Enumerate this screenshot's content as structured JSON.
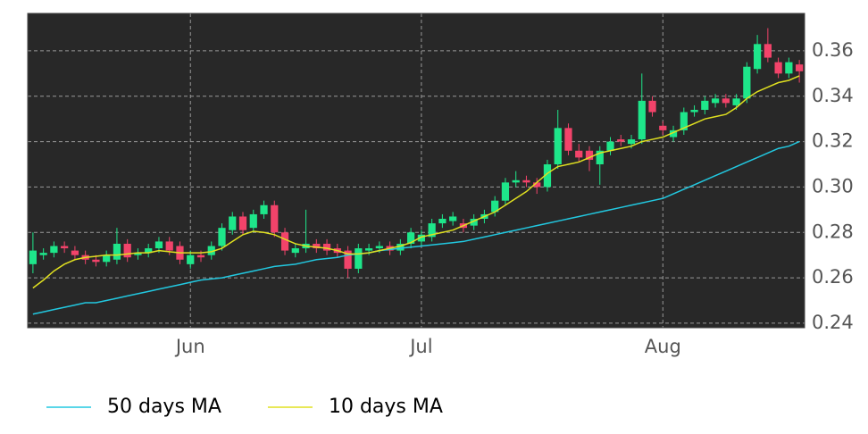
{
  "chart_data": {
    "type": "candlestick",
    "categories": [
      null,
      null,
      null,
      null,
      null,
      null,
      null,
      null,
      null,
      null,
      null,
      null,
      null,
      null,
      null,
      "Jun",
      null,
      null,
      null,
      null,
      null,
      null,
      null,
      null,
      null,
      null,
      null,
      null,
      null,
      null,
      null,
      null,
      null,
      null,
      null,
      null,
      null,
      "Jul",
      null,
      null,
      null,
      null,
      null,
      null,
      null,
      null,
      null,
      null,
      null,
      null,
      null,
      null,
      null,
      null,
      null,
      null,
      null,
      null,
      null,
      null,
      "Aug",
      null,
      null,
      null,
      null,
      null,
      null,
      null,
      null,
      null,
      null,
      null,
      null,
      null
    ],
    "open": [
      0.266,
      0.27,
      0.271,
      0.274,
      0.272,
      0.27,
      0.268,
      0.267,
      0.268,
      0.275,
      0.27,
      0.271,
      0.273,
      0.276,
      0.274,
      0.266,
      0.27,
      0.27,
      0.274,
      0.281,
      0.287,
      0.282,
      0.288,
      0.292,
      0.28,
      0.271,
      0.273,
      0.275,
      0.275,
      0.273,
      0.272,
      0.264,
      0.272,
      0.273,
      0.274,
      0.272,
      0.275,
      0.276,
      0.278,
      0.284,
      0.285,
      0.284,
      0.283,
      0.286,
      0.289,
      0.294,
      0.302,
      0.303,
      0.302,
      0.3,
      0.31,
      0.326,
      0.316,
      0.316,
      0.31,
      0.316,
      0.321,
      0.319,
      0.321,
      0.338,
      0.327,
      0.322,
      0.325,
      0.333,
      0.334,
      0.337,
      0.339,
      0.336,
      0.339,
      0.352,
      0.363,
      0.355,
      0.35,
      0.354
    ],
    "close": [
      0.272,
      0.271,
      0.274,
      0.273,
      0.27,
      0.268,
      0.267,
      0.27,
      0.275,
      0.269,
      0.271,
      0.273,
      0.276,
      0.272,
      0.268,
      0.27,
      0.269,
      0.274,
      0.282,
      0.287,
      0.281,
      0.288,
      0.292,
      0.28,
      0.272,
      0.273,
      0.275,
      0.273,
      0.272,
      0.271,
      0.264,
      0.273,
      0.273,
      0.274,
      0.272,
      0.275,
      0.28,
      0.279,
      0.284,
      0.286,
      0.287,
      0.282,
      0.286,
      0.288,
      0.294,
      0.302,
      0.303,
      0.302,
      0.3,
      0.31,
      0.326,
      0.316,
      0.313,
      0.312,
      0.316,
      0.32,
      0.32,
      0.321,
      0.338,
      0.333,
      0.325,
      0.325,
      0.333,
      0.334,
      0.338,
      0.339,
      0.337,
      0.339,
      0.353,
      0.363,
      0.357,
      0.35,
      0.355,
      0.351
    ],
    "high": [
      0.28,
      0.273,
      0.276,
      0.276,
      0.274,
      0.272,
      0.27,
      0.272,
      0.282,
      0.277,
      0.273,
      0.275,
      0.278,
      0.278,
      0.276,
      0.272,
      0.272,
      0.276,
      0.284,
      0.289,
      0.289,
      0.29,
      0.294,
      0.294,
      0.282,
      0.275,
      0.29,
      0.277,
      0.277,
      0.275,
      0.274,
      0.275,
      0.275,
      0.276,
      0.276,
      0.277,
      0.282,
      0.281,
      0.286,
      0.288,
      0.289,
      0.286,
      0.288,
      0.29,
      0.296,
      0.304,
      0.307,
      0.305,
      0.304,
      0.312,
      0.334,
      0.328,
      0.319,
      0.318,
      0.318,
      0.322,
      0.323,
      0.323,
      0.35,
      0.34,
      0.329,
      0.327,
      0.335,
      0.336,
      0.34,
      0.341,
      0.341,
      0.341,
      0.355,
      0.367,
      0.37,
      0.357,
      0.357,
      0.356
    ],
    "low": [
      0.262,
      0.268,
      0.269,
      0.271,
      0.268,
      0.266,
      0.265,
      0.265,
      0.266,
      0.267,
      0.268,
      0.269,
      0.271,
      0.27,
      0.266,
      0.264,
      0.267,
      0.268,
      0.272,
      0.279,
      0.279,
      0.28,
      0.286,
      0.278,
      0.27,
      0.269,
      0.271,
      0.271,
      0.27,
      0.269,
      0.26,
      0.262,
      0.27,
      0.271,
      0.27,
      0.27,
      0.273,
      0.274,
      0.276,
      0.282,
      0.283,
      0.28,
      0.281,
      0.284,
      0.287,
      0.292,
      0.3,
      0.3,
      0.297,
      0.298,
      0.308,
      0.314,
      0.311,
      0.307,
      0.301,
      0.314,
      0.318,
      0.317,
      0.319,
      0.331,
      0.323,
      0.32,
      0.323,
      0.331,
      0.332,
      0.335,
      0.335,
      0.334,
      0.337,
      0.35,
      0.355,
      0.348,
      0.348,
      0.346
    ],
    "up_color": "#1ee68a",
    "down_color": "#f2436a",
    "lines": [
      {
        "name": "50 days MA",
        "color": "#22c8e0",
        "values": [
          0.244,
          0.245,
          0.246,
          0.247,
          0.248,
          0.249,
          0.249,
          0.25,
          0.251,
          0.252,
          0.253,
          0.254,
          0.255,
          0.256,
          0.257,
          0.258,
          0.259,
          0.2595,
          0.26,
          0.261,
          0.262,
          0.263,
          0.264,
          0.265,
          0.2655,
          0.266,
          0.267,
          0.268,
          0.2685,
          0.269,
          0.27,
          0.2705,
          0.271,
          0.272,
          0.2725,
          0.273,
          0.2735,
          0.274,
          0.2745,
          0.275,
          0.2755,
          0.276,
          0.277,
          0.278,
          0.279,
          0.28,
          0.281,
          0.282,
          0.283,
          0.284,
          0.285,
          0.286,
          0.287,
          0.288,
          0.289,
          0.29,
          0.291,
          0.292,
          0.293,
          0.294,
          0.295,
          0.297,
          0.299,
          0.301,
          0.303,
          0.305,
          0.307,
          0.309,
          0.311,
          0.313,
          0.315,
          0.317,
          0.318,
          0.32
        ]
      },
      {
        "name": "10 days MA",
        "color": "#e0e020",
        "values": [
          0.2555,
          0.259,
          0.263,
          0.266,
          0.268,
          0.269,
          0.2695,
          0.27,
          0.27,
          0.2705,
          0.271,
          0.271,
          0.272,
          0.2715,
          0.271,
          0.271,
          0.271,
          0.2715,
          0.273,
          0.276,
          0.279,
          0.2805,
          0.28,
          0.279,
          0.277,
          0.275,
          0.274,
          0.2735,
          0.273,
          0.272,
          0.2705,
          0.2705,
          0.271,
          0.272,
          0.273,
          0.274,
          0.2755,
          0.278,
          0.279,
          0.28,
          0.281,
          0.283,
          0.285,
          0.287,
          0.289,
          0.292,
          0.295,
          0.298,
          0.302,
          0.306,
          0.309,
          0.31,
          0.311,
          0.313,
          0.315,
          0.316,
          0.317,
          0.318,
          0.32,
          0.321,
          0.322,
          0.324,
          0.326,
          0.328,
          0.33,
          0.331,
          0.332,
          0.335,
          0.339,
          0.342,
          0.344,
          0.346,
          0.347,
          0.349
        ]
      }
    ],
    "ylim": [
      0.238,
      0.3765
    ],
    "yticks": [
      0.24,
      0.26,
      0.28,
      {
        "value": 0.3,
        "label": "0.30"
      },
      0.32,
      0.34,
      0.36
    ],
    "grid": true
  }
}
